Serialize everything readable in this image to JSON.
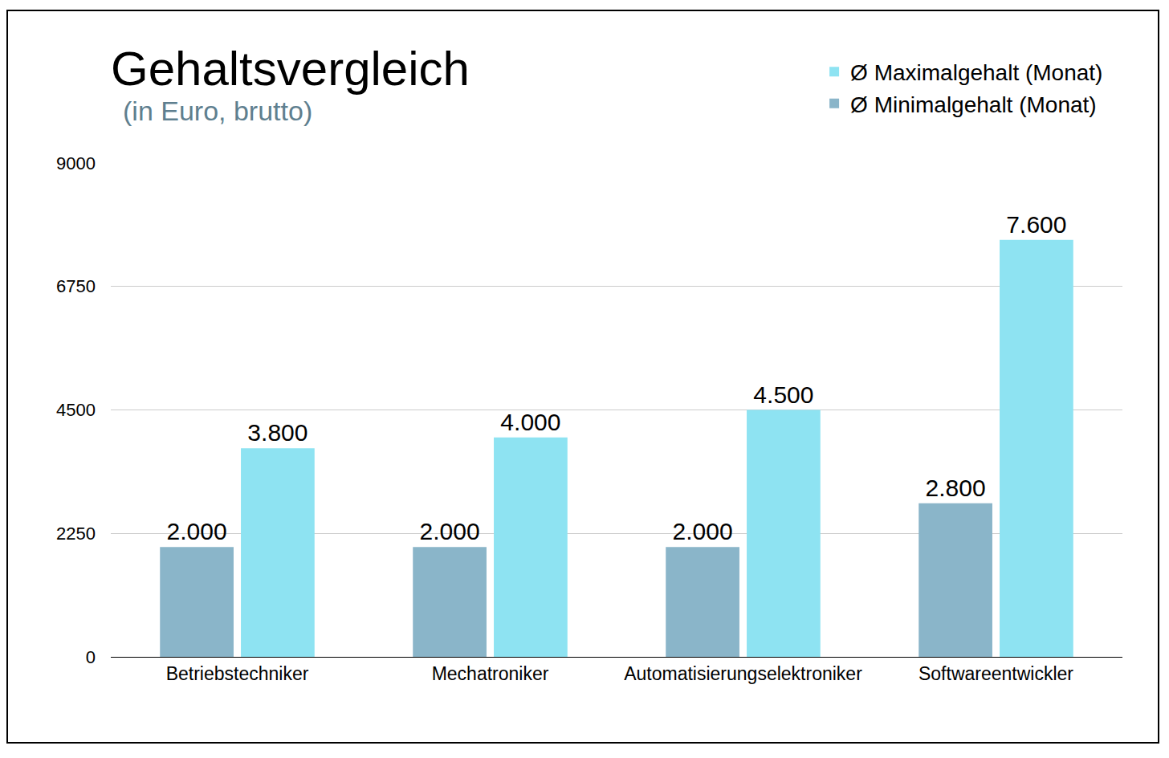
{
  "chart_data": {
    "type": "bar",
    "title": "Gehaltsvergleich",
    "subtitle": "(in Euro, brutto)",
    "categories": [
      "Betriebstechniker",
      "Mechatroniker",
      "Automatisierungselektroniker",
      "Softwareentwickler"
    ],
    "series": [
      {
        "name": "Ø Minimalgehalt (Monat)",
        "color": "#8ab5c9",
        "values": [
          2000,
          2000,
          2000,
          2800
        ],
        "value_labels": [
          "2.000",
          "2.000",
          "2.000",
          "2.800"
        ]
      },
      {
        "name": "Ø Maximalgehalt (Monat)",
        "color": "#8ee3f2",
        "values": [
          3800,
          4000,
          4500,
          7600
        ],
        "value_labels": [
          "3.800",
          "4.000",
          "4.500",
          "7.600"
        ]
      }
    ],
    "ylim": [
      0,
      9000
    ],
    "yticks": [
      0,
      2250,
      4500,
      6750,
      9000
    ],
    "grid": true,
    "legend": "top right",
    "data_labels": true
  }
}
